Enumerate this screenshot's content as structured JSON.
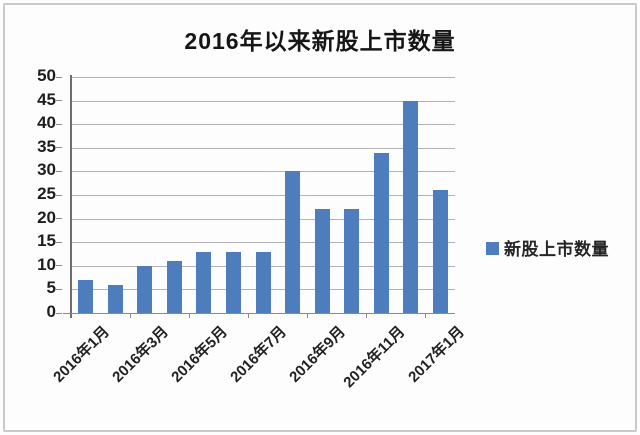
{
  "chart_data": {
    "type": "bar",
    "title": "2016年以来新股上市数量",
    "series": [
      {
        "name": "新股上市数量",
        "color": "#4d7dbd",
        "values": [
          7,
          6,
          10,
          11,
          13,
          13,
          13,
          30,
          22,
          22,
          34,
          45,
          26
        ]
      }
    ],
    "x_tick_labels": [
      "2016年1月",
      "2016年3月",
      "2016年5月",
      "2016年7月",
      "2016年9月",
      "2016年11月",
      "2017年1月"
    ],
    "x_label_interval": 2,
    "y_tick_labels": [
      "0",
      "5",
      "10",
      "15",
      "20",
      "25",
      "30",
      "35",
      "40",
      "45",
      "50"
    ],
    "ylim": [
      0,
      50
    ],
    "y_tick_step": 5,
    "grid": true,
    "legend_position": "right",
    "colors": {
      "bar": "#4d7dbd",
      "gridline": "#b2b2b2",
      "axis": "#8a8a8a",
      "text": "#1f1f1f"
    }
  }
}
